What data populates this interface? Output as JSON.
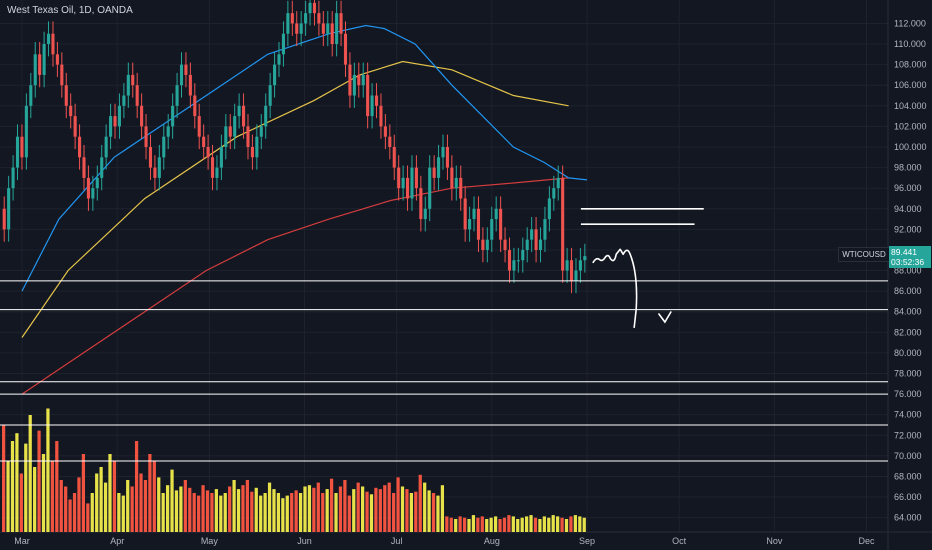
{
  "header": {
    "title": "West Texas Oil, 1D, OANDA"
  },
  "price_tag": {
    "symbol": "WTICOUSD",
    "last": "89.441",
    "countdown": "03:52:36"
  },
  "colors": {
    "up": "#26a69a",
    "down": "#ef5350",
    "vol_up": "#e8e24a",
    "vol_down": "#f05340",
    "ma_fast": "#2196f3",
    "ma_mid": "#e4c34a",
    "ma_slow": "#d23c3c",
    "bg": "#131722",
    "hline": "#ffffff",
    "drawing": "#ffffff"
  },
  "chart_data": {
    "type": "candlestick",
    "title": "West Texas Oil, 1D, OANDA",
    "ylabel": "",
    "xlabel": "",
    "ylim": [
      62.8,
      113.5
    ],
    "y_ticks": [
      "112.000",
      "110.000",
      "108.000",
      "106.000",
      "104.000",
      "102.000",
      "100.000",
      "98.000",
      "96.000",
      "94.000",
      "92.000",
      "90.000",
      "88.000",
      "86.000",
      "84.000",
      "82.000",
      "80.000",
      "78.000",
      "76.000",
      "74.000",
      "72.000",
      "70.000",
      "68.000",
      "66.000",
      "64.000"
    ],
    "x_ticks": [
      "Mar",
      "Apr",
      "May",
      "Jun",
      "Jul",
      "Aug",
      "Sep",
      "Oct",
      "Nov",
      "Dec"
    ],
    "x_tick_days": [
      0,
      31,
      61,
      92,
      122,
      153,
      184,
      214,
      245,
      275
    ],
    "seed_close": 94,
    "candle_closes": [
      92,
      96,
      98,
      101,
      99,
      104,
      106,
      109,
      107,
      110,
      111,
      109,
      108,
      106,
      104,
      103,
      101,
      99,
      97,
      95,
      96,
      97,
      99,
      101,
      103,
      102,
      104,
      105,
      107,
      106,
      104,
      102,
      100,
      98,
      97,
      99,
      101,
      102,
      104,
      106,
      108,
      107,
      105,
      103,
      101,
      100,
      99,
      97,
      98,
      100,
      102,
      101,
      103,
      104,
      102,
      100,
      99,
      101,
      102,
      104,
      106,
      108,
      109,
      111,
      113,
      112,
      111,
      112,
      113,
      114,
      113,
      112,
      111,
      112,
      110,
      113,
      111,
      108,
      105,
      107,
      106,
      107,
      103,
      105,
      104,
      102,
      101,
      100,
      98,
      96,
      97,
      95,
      98,
      96,
      93,
      94,
      98,
      97,
      99,
      100,
      98,
      96,
      97,
      95,
      92,
      93,
      94,
      91,
      90,
      91,
      93,
      94,
      91,
      90,
      88,
      89,
      89,
      90,
      91,
      92,
      90,
      91,
      93,
      95,
      96,
      97,
      88,
      89,
      87,
      88,
      89,
      89.4
    ],
    "ma_fast": [
      [
        0,
        86
      ],
      [
        12,
        93
      ],
      [
        30,
        99
      ],
      [
        60,
        105
      ],
      [
        80,
        109
      ],
      [
        100,
        111
      ],
      [
        112,
        111.8
      ],
      [
        118,
        111.5
      ],
      [
        128,
        110
      ],
      [
        140,
        106
      ],
      [
        160,
        100
      ],
      [
        170,
        98.5
      ],
      [
        178,
        97
      ],
      [
        184,
        96.8
      ]
    ],
    "ma_mid": [
      [
        0,
        81.5
      ],
      [
        15,
        88
      ],
      [
        40,
        95
      ],
      [
        70,
        101
      ],
      [
        95,
        104.5
      ],
      [
        110,
        107
      ],
      [
        124,
        108.3
      ],
      [
        140,
        107.5
      ],
      [
        160,
        105
      ],
      [
        178,
        104
      ]
    ],
    "ma_slow": [
      [
        0,
        76
      ],
      [
        20,
        80
      ],
      [
        40,
        84
      ],
      [
        60,
        88
      ],
      [
        80,
        91
      ],
      [
        100,
        93
      ],
      [
        120,
        94.8
      ],
      [
        140,
        96
      ],
      [
        160,
        96.5
      ],
      [
        178,
        97
      ]
    ],
    "horizontal_levels": [
      94.0,
      92.5,
      87.0,
      84.2,
      77.2,
      76.0,
      73.0,
      69.5
    ],
    "volume": [
      0.82,
      0.55,
      0.7,
      0.76,
      0.45,
      0.68,
      0.9,
      0.5,
      0.78,
      0.6,
      0.95,
      0.55,
      0.7,
      0.4,
      0.35,
      0.25,
      0.3,
      0.42,
      0.6,
      0.22,
      0.3,
      0.45,
      0.5,
      0.38,
      0.6,
      0.55,
      0.3,
      0.28,
      0.4,
      0.35,
      0.7,
      0.45,
      0.4,
      0.6,
      0.55,
      0.42,
      0.3,
      0.36,
      0.48,
      0.32,
      0.35,
      0.4,
      0.34,
      0.3,
      0.28,
      0.36,
      0.32,
      0.3,
      0.33,
      0.28,
      0.3,
      0.35,
      0.4,
      0.33,
      0.36,
      0.4,
      0.31,
      0.34,
      0.28,
      0.3,
      0.38,
      0.33,
      0.3,
      0.26,
      0.28,
      0.3,
      0.32,
      0.3,
      0.35,
      0.36,
      0.34,
      0.38,
      0.3,
      0.33,
      0.41,
      0.3,
      0.35,
      0.4,
      0.28,
      0.33,
      0.38,
      0.35,
      0.31,
      0.29,
      0.34,
      0.33,
      0.36,
      0.38,
      0.3,
      0.42,
      0.35,
      0.33,
      0.3,
      0.31,
      0.44,
      0.38,
      0.32,
      0.3,
      0.28,
      0.36,
      0.12,
      0.11,
      0.1,
      0.12,
      0.11,
      0.1,
      0.13,
      0.11,
      0.12,
      0.1,
      0.11,
      0.12,
      0.1,
      0.11,
      0.13,
      0.12,
      0.1,
      0.11,
      0.12,
      0.13,
      0.11,
      0.1,
      0.12,
      0.11,
      0.13,
      0.12,
      0.11,
      0.1,
      0.12,
      0.13,
      0.12,
      0.11
    ]
  }
}
